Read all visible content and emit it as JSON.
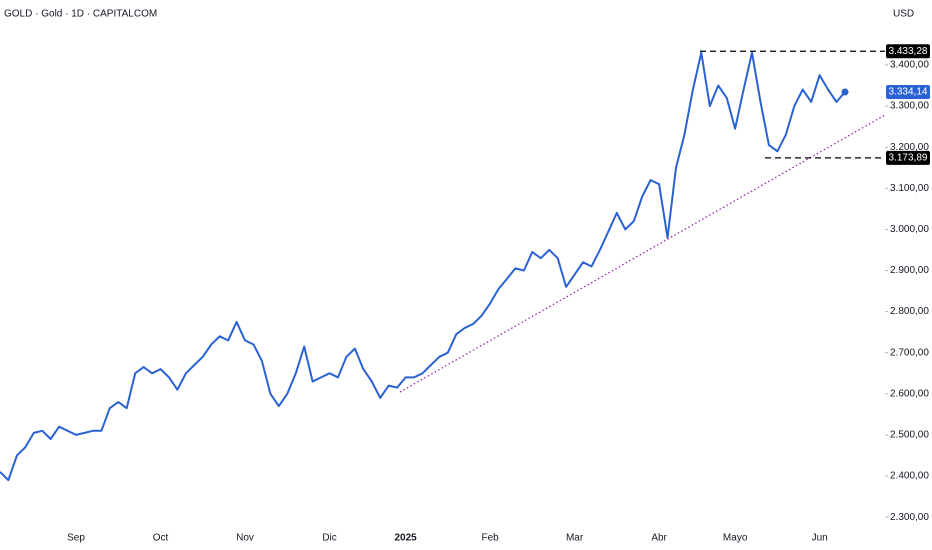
{
  "chart_data": {
    "type": "line",
    "title": "GOLD · Gold · 1D · CAPITALCOM",
    "currency": "USD",
    "categories": [
      null,
      null,
      null,
      null,
      null,
      null,
      null,
      null,
      null,
      "Sep",
      null,
      null,
      null,
      null,
      null,
      null,
      null,
      null,
      null,
      "Oct",
      null,
      null,
      null,
      null,
      null,
      null,
      null,
      null,
      null,
      "Nov",
      null,
      null,
      null,
      null,
      null,
      null,
      null,
      null,
      null,
      "Dic",
      null,
      null,
      null,
      null,
      null,
      null,
      null,
      null,
      "2025",
      null,
      null,
      null,
      null,
      null,
      null,
      null,
      null,
      null,
      "Feb",
      null,
      null,
      null,
      null,
      null,
      null,
      null,
      null,
      null,
      "Mar",
      null,
      null,
      null,
      null,
      null,
      null,
      null,
      null,
      null,
      "Abr",
      null,
      null,
      null,
      null,
      null,
      null,
      null,
      null,
      "Mayo",
      null,
      null,
      null,
      null,
      null,
      null,
      null,
      null,
      null,
      "Jun",
      null,
      null,
      null
    ],
    "series": [
      {
        "name": "GOLD",
        "color": "#2a62d4",
        "values": [
          2410,
          2390,
          2450,
          2470,
          2505,
          2510,
          2490,
          2520,
          2510,
          2500,
          2505,
          2510,
          2510,
          2565,
          2580,
          2565,
          2650,
          2665,
          2650,
          2660,
          2640,
          2610,
          2650,
          2670,
          2690,
          2720,
          2740,
          2730,
          2775,
          2730,
          2720,
          2680,
          2600,
          2570,
          2600,
          2650,
          2715,
          2630,
          2640,
          2650,
          2640,
          2690,
          2710,
          2660,
          2630,
          2590,
          2620,
          2615,
          2640,
          2640,
          2650,
          2670,
          2690,
          2700,
          2745,
          2760,
          2770,
          2790,
          2820,
          2855,
          2880,
          2905,
          2900,
          2945,
          2930,
          2950,
          2930,
          2860,
          2890,
          2920,
          2910,
          2950,
          2995,
          3040,
          3000,
          3020,
          3080,
          3120,
          3110,
          2980,
          3150,
          3230,
          3340,
          3430,
          3300,
          3350,
          3320,
          3245,
          3340,
          3430,
          3310,
          3205,
          3190,
          3230,
          3300,
          3340,
          3310,
          3375,
          3340,
          3310,
          3334.14
        ]
      }
    ],
    "price_label": {
      "value": 3334.14,
      "label": "3.334,14"
    },
    "levels": [
      {
        "value": 3433.28,
        "label": "3.433,28"
      },
      {
        "value": 3173.89,
        "label": "3.173,89"
      }
    ],
    "ylim": [
      2276,
      3558
    ],
    "yticks": [
      {
        "value": 2300,
        "label": "2.300,00"
      },
      {
        "value": 2400,
        "label": "2.400,00"
      },
      {
        "value": 2500,
        "label": "2.500,00"
      },
      {
        "value": 2600,
        "label": "2.600,00"
      },
      {
        "value": 2700,
        "label": "2.700,00"
      },
      {
        "value": 2800,
        "label": "2.800,00"
      },
      {
        "value": 2900,
        "label": "2.900,00"
      },
      {
        "value": 3000,
        "label": "3.000,00"
      },
      {
        "value": 3100,
        "label": "3.100,00"
      },
      {
        "value": 3200,
        "label": "3.200,00"
      },
      {
        "value": 3300,
        "label": "3.300,00"
      },
      {
        "value": 3400,
        "label": "3.400,00"
      }
    ],
    "grid": false
  }
}
